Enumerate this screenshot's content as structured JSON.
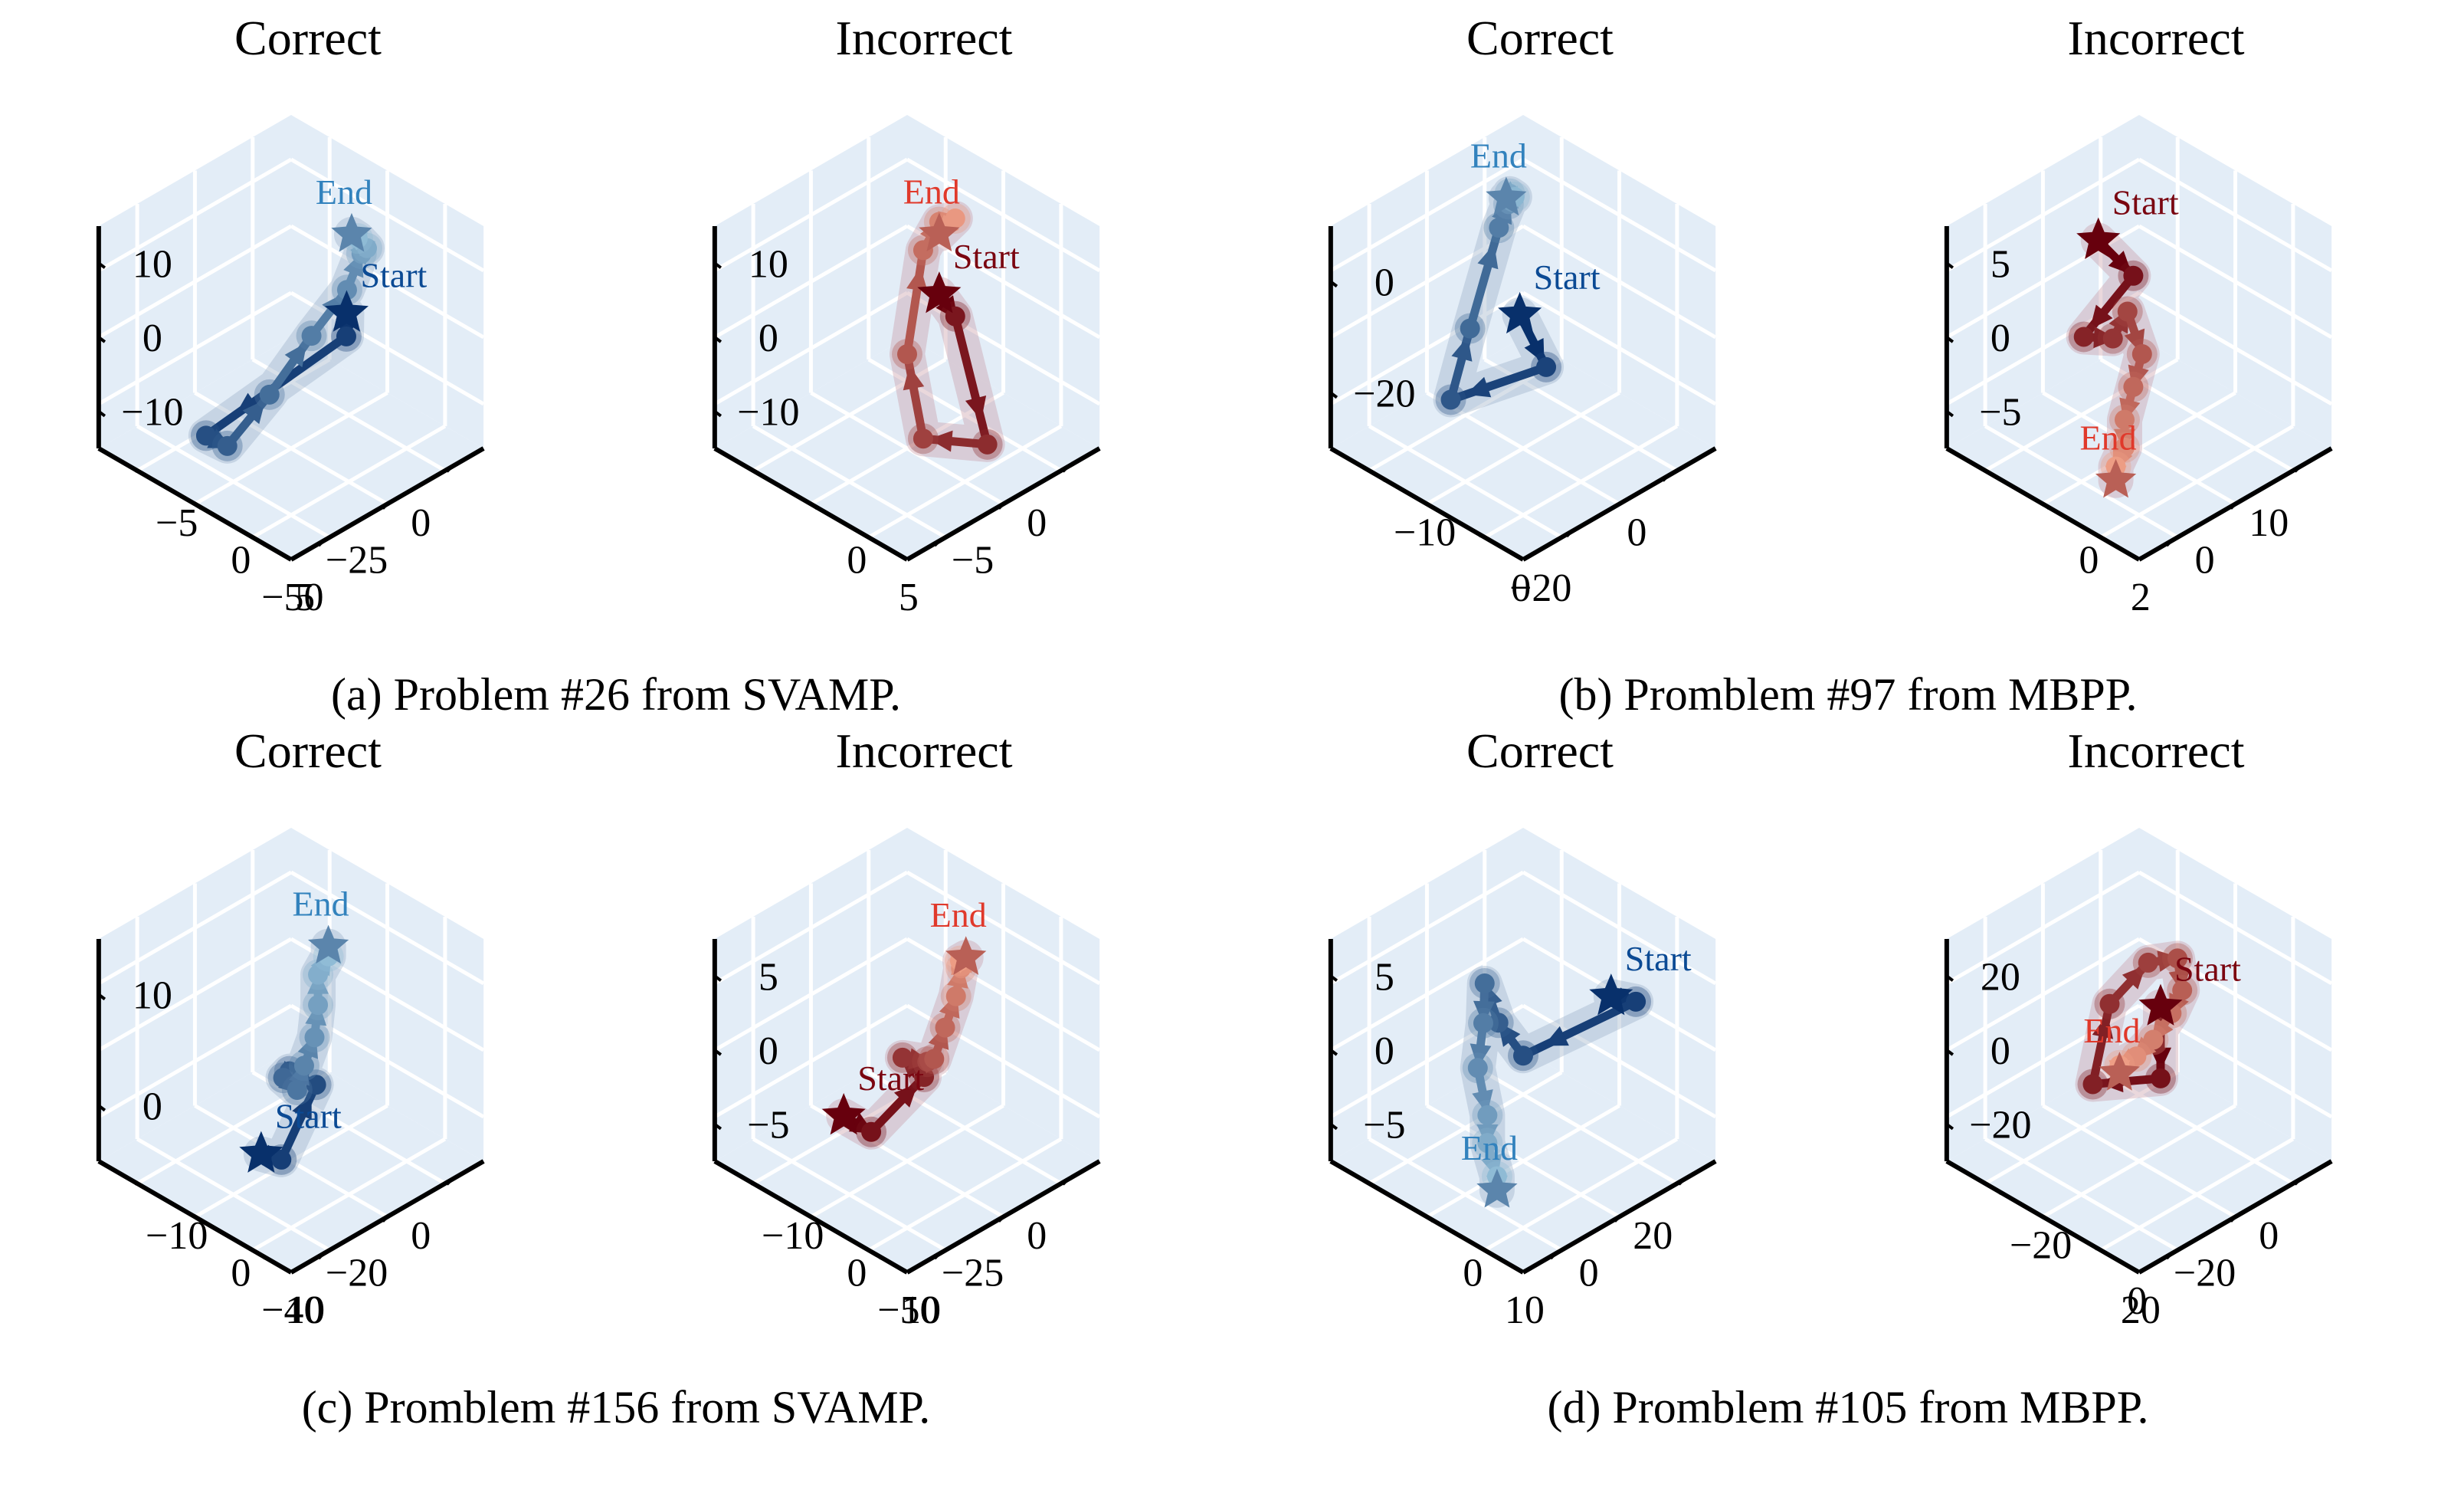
{
  "figure": {
    "colors": {
      "pane": "#e3edf7",
      "grid": "#ffffff",
      "correct_dark": "#08306b",
      "correct_mid": "#1f62ab",
      "correct_light": "#9ecae1",
      "correct_label_start": "#0b4a94",
      "correct_label_end": "#3282bd",
      "incorrect_dark": "#67000d",
      "incorrect_mid": "#c9181d",
      "incorrect_light": "#fcae91",
      "incorrect_label_start": "#7a0510",
      "incorrect_label_end": "#e0392b",
      "band_blue": "#8fa5bf",
      "band_red": "#c48f9a"
    },
    "captions": {
      "a": "(a) Problem #26 from SVAMP.",
      "b": "(b) Promblem #97 from MBPP.",
      "c": "(c) Promblem #156 from SVAMP.",
      "d": "(d) Promblem #105 from MBPP."
    }
  },
  "chart_data": [
    {
      "type": "line3d",
      "group": "a",
      "title": "Correct",
      "scheme": "blue",
      "start_label": "Start",
      "end_label": "End",
      "xticks": [
        "0",
        "−25",
        "−50"
      ],
      "yticks": [
        "5",
        "0",
        "−5"
      ],
      "zticks": [
        "−10",
        "0",
        "10"
      ],
      "xlim": [
        10,
        -55
      ],
      "ylim": [
        8,
        -8
      ],
      "zlim": [
        -15,
        20
      ],
      "points": [
        [
          -20,
          -4,
          10
        ],
        [
          -12,
          -2,
          2
        ],
        [
          -35,
          4,
          -14
        ],
        [
          -40,
          1,
          -11
        ],
        [
          -42,
          -3,
          2
        ],
        [
          -40,
          -6,
          14
        ],
        [
          -28,
          -6,
          18
        ],
        [
          -15,
          -4,
          18
        ],
        [
          -5,
          -2,
          14
        ],
        [
          0,
          0,
          12
        ],
        [
          2,
          1,
          11
        ]
      ]
    },
    {
      "type": "line3d",
      "group": "a",
      "title": "Incorrect",
      "scheme": "red",
      "start_label": "Start",
      "end_label": "End",
      "xticks": [
        "0",
        "−5",
        "5"
      ],
      "yticks": [
        "0"
      ],
      "zticks": [
        "−10",
        "0",
        "10"
      ],
      "xlim": [
        2,
        -10
      ],
      "ylim": [
        6,
        -6
      ],
      "zlim": [
        -15,
        20
      ],
      "points": [
        [
          -6,
          -4,
          18
        ],
        [
          -6,
          -5,
          16
        ],
        [
          -3,
          -4,
          -10
        ],
        [
          -4,
          -1,
          -12
        ],
        [
          -2,
          2,
          -6
        ],
        [
          0,
          3,
          6
        ],
        [
          1,
          3,
          9
        ],
        [
          1,
          2,
          11
        ],
        [
          0,
          2,
          10
        ]
      ]
    },
    {
      "type": "line3d",
      "group": "b",
      "title": "Correct",
      "scheme": "blue",
      "start_label": "Start",
      "end_label": "End",
      "xticks": [
        "0",
        "−20"
      ],
      "yticks": [
        "0",
        "−10"
      ],
      "zticks": [
        "−20",
        "0"
      ],
      "xlim": [
        10,
        -30
      ],
      "ylim": [
        8,
        -15
      ],
      "zlim": [
        -25,
        12
      ],
      "points": [
        [
          -22,
          -10,
          8
        ],
        [
          -20,
          -12,
          0
        ],
        [
          -12,
          4,
          -22
        ],
        [
          -8,
          4,
          -12
        ],
        [
          -2,
          4,
          2
        ],
        [
          0,
          4,
          5
        ],
        [
          2,
          5,
          5
        ],
        [
          3,
          5,
          4
        ],
        [
          3,
          6,
          3
        ]
      ]
    },
    {
      "type": "line3d",
      "group": "b",
      "title": "Incorrect",
      "scheme": "red",
      "start_label": "Start",
      "end_label": "End",
      "xticks": [
        "10",
        "0",
        "2"
      ],
      "yticks": [
        "0"
      ],
      "zticks": [
        "−5",
        "0",
        "5"
      ],
      "xlim": [
        18,
        -4
      ],
      "ylim": [
        4,
        -2
      ],
      "zlim": [
        -8,
        8
      ],
      "points": [
        [
          6,
          2,
          6
        ],
        [
          10,
          2,
          2
        ],
        [
          8,
          3,
          -3
        ],
        [
          4,
          1,
          1
        ],
        [
          2,
          0,
          5
        ],
        [
          0,
          -1,
          4
        ],
        [
          -1,
          -1,
          2
        ],
        [
          -2,
          -1,
          0
        ],
        [
          -2,
          -1,
          -2
        ],
        [
          -3,
          -1,
          -3
        ],
        [
          -3,
          -1,
          -4
        ]
      ]
    },
    {
      "type": "line3d",
      "group": "c",
      "title": "Correct",
      "scheme": "blue",
      "start_label": "Start",
      "end_label": "End",
      "xticks": [
        "0",
        "−20",
        "−40"
      ],
      "yticks": [
        "10",
        "0",
        "−10"
      ],
      "zticks": [
        "0",
        "10"
      ],
      "xlim": [
        10,
        -45
      ],
      "ylim": [
        14,
        -14
      ],
      "zlim": [
        -8,
        14
      ],
      "points": [
        [
          -30,
          -2,
          -4
        ],
        [
          -36,
          -8,
          -1
        ],
        [
          -30,
          -10,
          6
        ],
        [
          -18,
          0,
          1
        ],
        [
          -8,
          6,
          -4
        ],
        [
          -4,
          6,
          -6
        ],
        [
          -2,
          6,
          -4
        ],
        [
          -1,
          5,
          -1
        ],
        [
          0,
          5,
          2
        ],
        [
          0,
          5,
          5
        ],
        [
          1,
          4,
          7
        ],
        [
          1,
          4,
          8
        ]
      ]
    },
    {
      "type": "line3d",
      "group": "c",
      "title": "Incorrect",
      "scheme": "red",
      "start_label": "Start",
      "end_label": "End",
      "xticks": [
        "0",
        "−25",
        "−50"
      ],
      "yticks": [
        "10",
        "0",
        "−10"
      ],
      "zticks": [
        "−5",
        "0",
        "5"
      ],
      "xlim": [
        10,
        -55
      ],
      "ylim": [
        14,
        -14
      ],
      "zlim": [
        -6,
        7
      ],
      "points": [
        [
          -30,
          6,
          -4
        ],
        [
          -30,
          2,
          -4
        ],
        [
          -40,
          -10,
          3
        ],
        [
          -38,
          -6,
          3
        ],
        [
          -25,
          -4,
          1
        ],
        [
          -18,
          -2,
          0
        ],
        [
          -12,
          -1,
          1
        ],
        [
          -6,
          0,
          2
        ],
        [
          -2,
          1,
          3
        ],
        [
          0,
          2,
          3
        ],
        [
          2,
          2,
          3
        ]
      ]
    },
    {
      "type": "line3d",
      "group": "d",
      "title": "Correct",
      "scheme": "blue",
      "start_label": "Start",
      "end_label": "End",
      "xticks": [
        "20",
        "0",
        "10"
      ],
      "yticks": [
        "0"
      ],
      "zticks": [
        "−5",
        "0",
        "5"
      ],
      "xlim": [
        30,
        -5
      ],
      "ylim": [
        12,
        -8
      ],
      "zlim": [
        -8,
        8
      ],
      "points": [
        [
          18,
          -4,
          5
        ],
        [
          26,
          -2,
          2
        ],
        [
          16,
          4,
          -2
        ],
        [
          8,
          2,
          3
        ],
        [
          2,
          0,
          8
        ],
        [
          0,
          -1,
          6
        ],
        [
          -1,
          -1,
          3
        ],
        [
          -1,
          -2,
          0
        ],
        [
          -1,
          -2,
          -2
        ],
        [
          -1,
          -3,
          -4
        ],
        [
          -1,
          -3,
          -5
        ]
      ]
    },
    {
      "type": "line3d",
      "group": "d",
      "title": "Incorrect",
      "scheme": "red",
      "start_label": "Start",
      "end_label": "End",
      "xticks": [
        "0",
        "−20",
        "20"
      ],
      "yticks": [
        "0",
        "−20"
      ],
      "zticks": [
        "−20",
        "0",
        "20"
      ],
      "xlim": [
        12,
        -30
      ],
      "ylim": [
        25,
        -25
      ],
      "zlim": [
        -28,
        28
      ],
      "points": [
        [
          -6,
          -2,
          10
        ],
        [
          -6,
          -2,
          -8
        ],
        [
          -4,
          18,
          -22
        ],
        [
          -2,
          16,
          -2
        ],
        [
          -2,
          6,
          14
        ],
        [
          -4,
          -4,
          22
        ],
        [
          -8,
          -10,
          20
        ],
        [
          -12,
          -12,
          18
        ],
        [
          -16,
          -12,
          14
        ],
        [
          -18,
          -10,
          10
        ],
        [
          -20,
          -8,
          8
        ],
        [
          -20,
          -8,
          6
        ]
      ]
    }
  ]
}
